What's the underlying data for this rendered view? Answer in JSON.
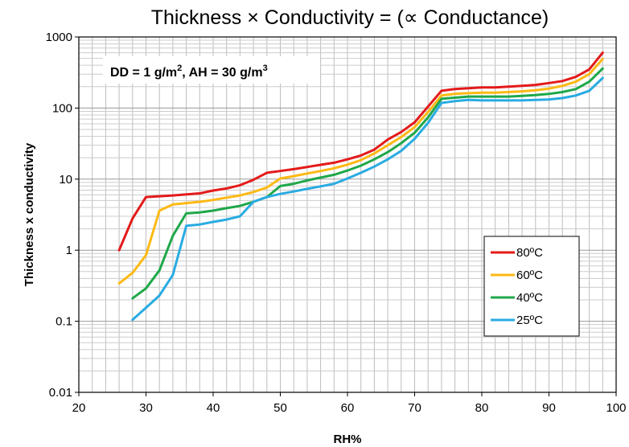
{
  "chart_data": {
    "type": "line",
    "title": "Thickness × Conductivity = (∝ Conductance)",
    "xlabel": "RH%",
    "ylabel": "Thickness x conductivity",
    "xlim": [
      20,
      100
    ],
    "ylim": [
      0.01,
      1000
    ],
    "yscale": "log",
    "grid": true,
    "legend_position": "right",
    "annotation": {
      "part1": "DD = 1 g/m",
      "sup1": "2",
      "part2": ", AH = 30 g/m",
      "sup2": "3"
    },
    "x_ticks": [
      "20",
      "30",
      "40",
      "50",
      "60",
      "70",
      "80",
      "90",
      "100"
    ],
    "y_ticks": [
      "0.01",
      "0.1",
      "1",
      "10",
      "100",
      "1000"
    ],
    "series": [
      {
        "name": "80ºC",
        "color": "#e41a1a",
        "x": [
          26,
          28,
          30,
          34,
          38,
          40,
          42,
          44,
          46,
          48,
          50,
          52,
          54,
          56,
          58,
          60,
          62,
          64,
          66,
          68,
          70,
          72,
          74,
          76,
          78,
          80,
          82,
          84,
          86,
          88,
          90,
          92,
          94,
          96,
          98
        ],
        "y": [
          1.0,
          2.8,
          5.6,
          5.9,
          6.3,
          6.9,
          7.4,
          8.2,
          9.8,
          12.3,
          13.0,
          13.8,
          14.8,
          15.9,
          17.0,
          19.0,
          21.5,
          26.0,
          36.0,
          46.0,
          63.0,
          105.0,
          175.0,
          185.0,
          190.0,
          195.0,
          195.0,
          200.0,
          205.0,
          212.0,
          225.0,
          240.0,
          275.0,
          350.0,
          600.0
        ]
      },
      {
        "name": "60ºC",
        "color": "#fdb913",
        "x": [
          26,
          28,
          30,
          32,
          34,
          36,
          38,
          40,
          42,
          44,
          46,
          48,
          50,
          52,
          54,
          56,
          58,
          60,
          62,
          64,
          66,
          68,
          70,
          72,
          74,
          76,
          78,
          80,
          82,
          84,
          86,
          88,
          90,
          92,
          94,
          96,
          98
        ],
        "y": [
          0.34,
          0.48,
          0.85,
          3.6,
          4.4,
          4.6,
          4.8,
          5.1,
          5.5,
          5.9,
          6.6,
          7.6,
          10.2,
          11.0,
          12.0,
          13.0,
          14.2,
          16.0,
          18.5,
          23.0,
          30.0,
          39.0,
          54.0,
          88.0,
          150.0,
          158.0,
          162.0,
          165.0,
          165.0,
          168.0,
          172.0,
          178.0,
          188.0,
          205.0,
          235.0,
          300.0,
          490.0
        ]
      },
      {
        "name": "40ºC",
        "color": "#1fa84a",
        "x": [
          28,
          30,
          32,
          34,
          36,
          38,
          40,
          42,
          44,
          46,
          48,
          50,
          52,
          54,
          56,
          58,
          60,
          62,
          64,
          66,
          68,
          70,
          72,
          74,
          76,
          78,
          80,
          82,
          84,
          86,
          88,
          90,
          92,
          94,
          96,
          98
        ],
        "y": [
          0.21,
          0.29,
          0.52,
          1.6,
          3.3,
          3.4,
          3.6,
          3.9,
          4.2,
          4.8,
          5.6,
          8.0,
          8.6,
          9.6,
          10.5,
          11.5,
          13.2,
          15.5,
          19.0,
          24.0,
          32.0,
          45.0,
          74.0,
          135.0,
          140.0,
          145.0,
          145.0,
          145.0,
          145.0,
          148.0,
          152.0,
          158.0,
          168.0,
          185.0,
          235.0,
          360.0
        ]
      },
      {
        "name": "25ºC",
        "color": "#29abe2",
        "x": [
          28,
          30,
          32,
          34,
          36,
          38,
          40,
          42,
          44,
          46,
          48,
          50,
          52,
          54,
          56,
          58,
          60,
          62,
          64,
          66,
          68,
          70,
          72,
          74,
          76,
          78,
          80,
          82,
          84,
          86,
          88,
          90,
          92,
          94,
          96,
          98
        ],
        "y": [
          0.105,
          0.155,
          0.23,
          0.45,
          2.2,
          2.3,
          2.5,
          2.7,
          3.0,
          4.8,
          5.6,
          6.2,
          6.7,
          7.3,
          7.9,
          8.6,
          10.2,
          12.3,
          15.0,
          19.0,
          25.0,
          37.0,
          62.0,
          118.0,
          125.0,
          130.0,
          128.0,
          128.0,
          128.0,
          128.0,
          130.0,
          132.0,
          138.0,
          150.0,
          175.0,
          265.0
        ]
      }
    ]
  }
}
